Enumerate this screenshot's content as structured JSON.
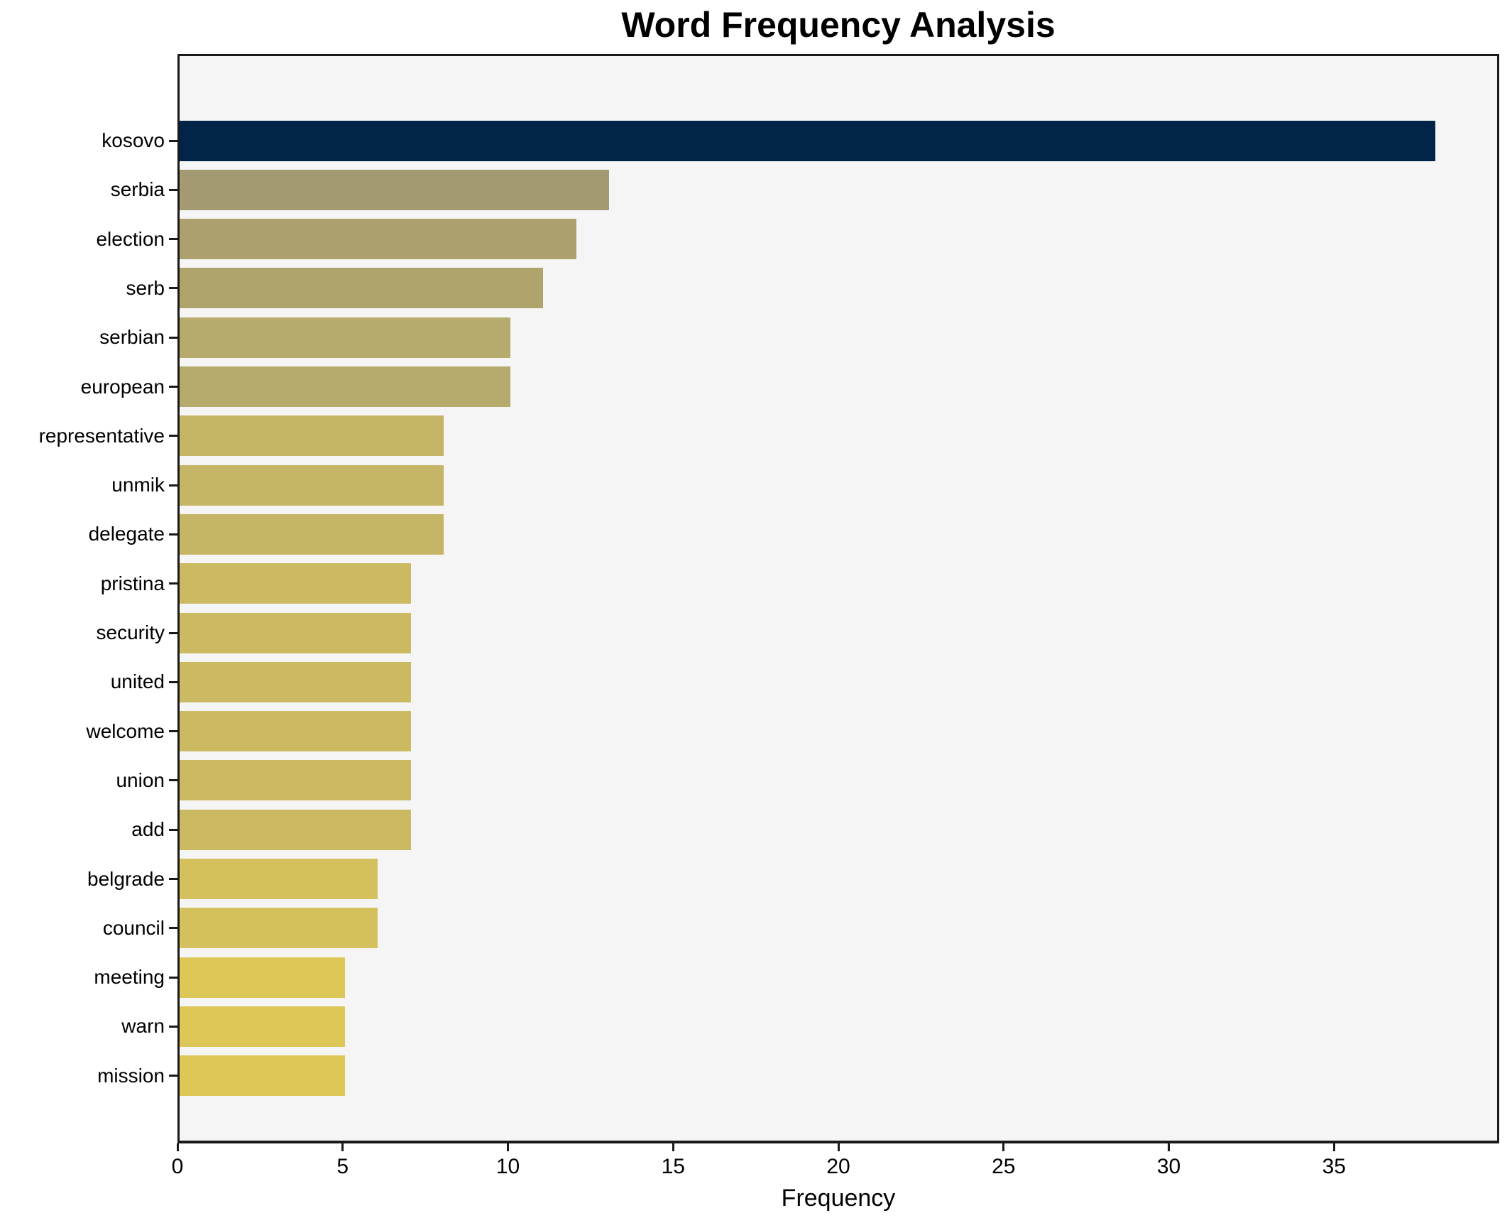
{
  "title": "Word Frequency Analysis",
  "chart_data": {
    "type": "bar",
    "orientation": "horizontal",
    "title": "Word Frequency Analysis",
    "xlabel": "Frequency",
    "ylabel": "",
    "categories": [
      "kosovo",
      "serbia",
      "election",
      "serb",
      "serbian",
      "european",
      "representative",
      "unmik",
      "delegate",
      "pristina",
      "security",
      "united",
      "welcome",
      "union",
      "add",
      "belgrade",
      "council",
      "meeting",
      "warn",
      "mission"
    ],
    "values": [
      38,
      13,
      12,
      11,
      10,
      10,
      8,
      8,
      8,
      7,
      7,
      7,
      7,
      7,
      7,
      6,
      6,
      5,
      5,
      5
    ],
    "bar_colors": [
      "#032449",
      "#a39a71",
      "#aba06e",
      "#b0a46d",
      "#b6aa6c",
      "#b6aa6c",
      "#c5b566",
      "#c5b566",
      "#c5b566",
      "#ccba62",
      "#ccba62",
      "#ccba62",
      "#ccba62",
      "#ccba62",
      "#ccba62",
      "#d4c15d",
      "#d4c15d",
      "#dcc757",
      "#dcc757",
      "#dcc757"
    ],
    "x_ticks": [
      0,
      5,
      10,
      15,
      20,
      25,
      30,
      35
    ],
    "xlim": [
      0,
      40
    ],
    "grid": false,
    "legend": "none",
    "plot_background": "#f5f5f6",
    "figure_background": "#ffffff",
    "spine_color": "#1a1a1a",
    "text_color": "#000000"
  }
}
